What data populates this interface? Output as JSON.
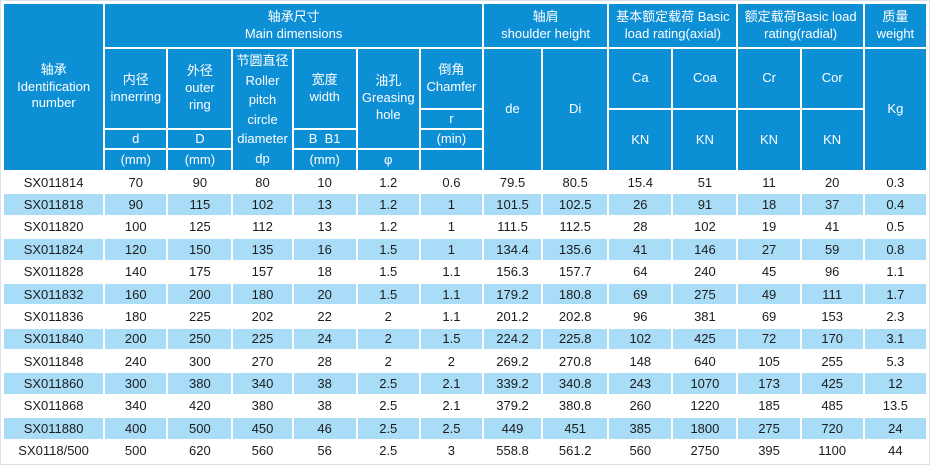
{
  "colors": {
    "header_bg": "#0d8fd6",
    "stripe_bg": "#a9dcf7",
    "row_bg": "#ffffff",
    "grid_line": "#ffffff",
    "text_dark": "#1c1c1c",
    "text_light": "#ffffff"
  },
  "header": {
    "identification": "轴承\nIdentification\nnumber",
    "groups": {
      "main_dimensions": "轴承尺寸\nMain dimensions",
      "shoulder_height": "轴肩\nshoulder height",
      "load_axial": "基本额定载荷 Basic\nload rating(axial)",
      "load_radial": "额定载荷Basic load\nrating(radial)",
      "weight": "质量\nweight"
    },
    "sub": {
      "inner_ring": "内径\ninnerring",
      "outer_ring": "外径\nouter\nring",
      "pitch_diameter": "节圆直径\nRoller\npitch\ncircle\ndiameter\ndp",
      "width": "宽度\nwidth",
      "greasing_hole": "油孔\nGreasing\nhole",
      "chamfer": "倒角\nChamfer",
      "d": "d",
      "D": "D",
      "b_b1": "B  B1",
      "r": "r",
      "r_min": "(min)",
      "phi": "φ",
      "de": "de",
      "di": "Di",
      "ca": "Ca",
      "coa": "Coa",
      "cr": "Cr",
      "cor": "Cor",
      "kg": "Kg"
    },
    "units": {
      "mm": "(mm)",
      "kn": "KN"
    }
  },
  "rows": [
    {
      "id": "SX011814",
      "values": [
        "70",
        "90",
        "80",
        "10",
        "1.2",
        "0.6",
        "79.5",
        "80.5",
        "15.4",
        "51",
        "11",
        "20",
        "0.3"
      ]
    },
    {
      "id": "SX011818",
      "values": [
        "90",
        "115",
        "102",
        "13",
        "1.2",
        "1",
        "101.5",
        "102.5",
        "26",
        "91",
        "18",
        "37",
        "0.4"
      ]
    },
    {
      "id": "SX011820",
      "values": [
        "100",
        "125",
        "112",
        "13",
        "1.2",
        "1",
        "111.5",
        "112.5",
        "28",
        "102",
        "19",
        "41",
        "0.5"
      ]
    },
    {
      "id": "SX011824",
      "values": [
        "120",
        "150",
        "135",
        "16",
        "1.5",
        "1",
        "134.4",
        "135.6",
        "41",
        "146",
        "27",
        "59",
        "0.8"
      ]
    },
    {
      "id": "SX011828",
      "values": [
        "140",
        "175",
        "157",
        "18",
        "1.5",
        "1.1",
        "156.3",
        "157.7",
        "64",
        "240",
        "45",
        "96",
        "1.1"
      ]
    },
    {
      "id": "SX011832",
      "values": [
        "160",
        "200",
        "180",
        "20",
        "1.5",
        "1.1",
        "179.2",
        "180.8",
        "69",
        "275",
        "49",
        "111",
        "1.7"
      ]
    },
    {
      "id": "SX011836",
      "values": [
        "180",
        "225",
        "202",
        "22",
        "2",
        "1.1",
        "201.2",
        "202.8",
        "96",
        "381",
        "69",
        "153",
        "2.3"
      ]
    },
    {
      "id": "SX011840",
      "values": [
        "200",
        "250",
        "225",
        "24",
        "2",
        "1.5",
        "224.2",
        "225.8",
        "102",
        "425",
        "72",
        "170",
        "3.1"
      ]
    },
    {
      "id": "SX011848",
      "values": [
        "240",
        "300",
        "270",
        "28",
        "2",
        "2",
        "269.2",
        "270.8",
        "148",
        "640",
        "105",
        "255",
        "5.3"
      ]
    },
    {
      "id": "SX011860",
      "values": [
        "300",
        "380",
        "340",
        "38",
        "2.5",
        "2.1",
        "339.2",
        "340.8",
        "243",
        "1070",
        "173",
        "425",
        "12"
      ]
    },
    {
      "id": "SX011868",
      "values": [
        "340",
        "420",
        "380",
        "38",
        "2.5",
        "2.1",
        "379.2",
        "380.8",
        "260",
        "1220",
        "185",
        "485",
        "13.5"
      ]
    },
    {
      "id": "SX011880",
      "values": [
        "400",
        "500",
        "450",
        "46",
        "2.5",
        "2.5",
        "449",
        "451",
        "385",
        "1800",
        "275",
        "720",
        "24"
      ]
    },
    {
      "id": "SX0118/500",
      "values": [
        "500",
        "620",
        "560",
        "56",
        "2.5",
        "3",
        "558.8",
        "561.2",
        "560",
        "2750",
        "395",
        "1100",
        "44"
      ]
    }
  ]
}
